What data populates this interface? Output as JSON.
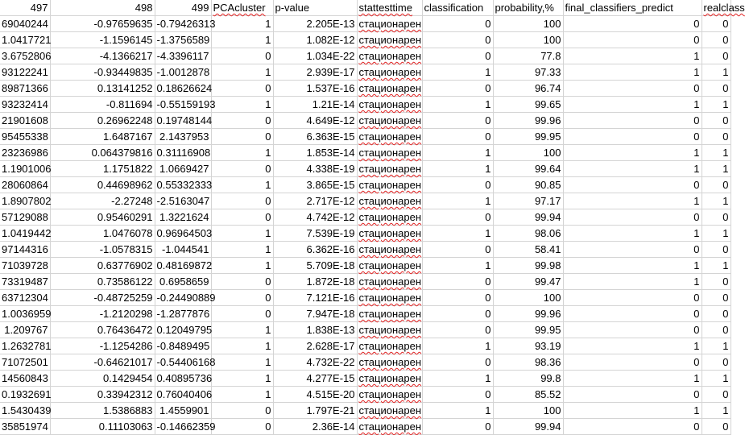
{
  "columns": [
    "497",
    "498",
    "499",
    "PCAcluster",
    "p-value",
    "stattesttime",
    "classification",
    "probability,%",
    "final_classifiers_predict",
    "realclass"
  ],
  "rows": [
    [
      "69040244",
      "-0.97659635",
      "-0.79426313",
      "1",
      "2.205E-13",
      "стационарен",
      "0",
      "100",
      "0",
      "0"
    ],
    [
      "1.0417721",
      "-1.1596145",
      "-1.3756589",
      "1",
      "1.082E-12",
      "стационарен",
      "0",
      "100",
      "0",
      "0"
    ],
    [
      "3.6752806",
      "-4.1366217",
      "-4.3396117",
      "0",
      "1.034E-22",
      "стационарен",
      "0",
      "77.8",
      "1",
      "0"
    ],
    [
      "93122241",
      "-0.93449835",
      "-1.0012878",
      "1",
      "2.939E-17",
      "стационарен",
      "1",
      "97.33",
      "1",
      "1"
    ],
    [
      "89871366",
      "0.13141252",
      "0.18626624",
      "0",
      "1.537E-16",
      "стационарен",
      "0",
      "96.74",
      "0",
      "0"
    ],
    [
      "93232414",
      "-0.811694",
      "-0.55159193",
      "1",
      "1.21E-14",
      "стационарен",
      "1",
      "99.65",
      "1",
      "1"
    ],
    [
      "21901608",
      "0.26962248",
      "0.19748144",
      "0",
      "4.649E-12",
      "стационарен",
      "0",
      "99.96",
      "0",
      "0"
    ],
    [
      "95455338",
      "1.6487167",
      "2.1437953",
      "0",
      "6.363E-15",
      "стационарен",
      "0",
      "99.95",
      "0",
      "0"
    ],
    [
      "23236986",
      "0.064379816",
      "0.31116908",
      "1",
      "1.853E-14",
      "стационарен",
      "1",
      "100",
      "1",
      "1"
    ],
    [
      "1.1901006",
      "1.1751822",
      "1.0669427",
      "0",
      "4.338E-19",
      "стационарен",
      "1",
      "99.64",
      "1",
      "1"
    ],
    [
      "28060864",
      "0.44698962",
      "0.55332333",
      "1",
      "3.865E-15",
      "стационарен",
      "0",
      "90.85",
      "0",
      "0"
    ],
    [
      "1.8907802",
      "-2.27248",
      "-2.5163047",
      "0",
      "2.717E-12",
      "стационарен",
      "1",
      "97.17",
      "1",
      "1"
    ],
    [
      "57129088",
      "0.95460291",
      "1.3221624",
      "0",
      "4.742E-12",
      "стационарен",
      "0",
      "99.94",
      "0",
      "0"
    ],
    [
      "1.0419442",
      "1.0476078",
      "0.96964503",
      "1",
      "7.539E-19",
      "стационарен",
      "1",
      "98.06",
      "1",
      "1"
    ],
    [
      "97144316",
      "-1.0578315",
      "-1.044541",
      "1",
      "6.362E-16",
      "стационарен",
      "0",
      "58.41",
      "0",
      "0"
    ],
    [
      "71039728",
      "0.63776902",
      "0.48169872",
      "1",
      "5.709E-18",
      "стационарен",
      "1",
      "99.98",
      "1",
      "1"
    ],
    [
      "73319487",
      "0.73586122",
      "0.6958659",
      "0",
      "1.872E-18",
      "стационарен",
      "0",
      "99.47",
      "1",
      "0"
    ],
    [
      "63712304",
      "-0.48725259",
      "-0.24490889",
      "0",
      "7.121E-16",
      "стационарен",
      "0",
      "100",
      "0",
      "0"
    ],
    [
      "1.0036959",
      "-1.2120298",
      "-1.2877876",
      "0",
      "7.947E-18",
      "стационарен",
      "0",
      "99.96",
      "0",
      "0"
    ],
    [
      "1.209767",
      "0.76436472",
      "0.12049795",
      "1",
      "1.838E-13",
      "стационарен",
      "0",
      "99.95",
      "0",
      "0"
    ],
    [
      "1.2632781",
      "-1.1254286",
      "-0.8489495",
      "1",
      "2.628E-17",
      "стационарен",
      "1",
      "93.19",
      "1",
      "1"
    ],
    [
      "71072501",
      "-0.64621017",
      "-0.54406168",
      "1",
      "4.732E-22",
      "стационарен",
      "0",
      "98.36",
      "0",
      "0"
    ],
    [
      "14560843",
      "0.1429454",
      "0.40895736",
      "1",
      "4.277E-15",
      "стационарен",
      "1",
      "99.8",
      "1",
      "1"
    ],
    [
      "0.1932691",
      "0.33942312",
      "0.76040406",
      "1",
      "4.515E-20",
      "стационарен",
      "0",
      "85.52",
      "0",
      "0"
    ],
    [
      "1.5430439",
      "1.5386883",
      "1.4559901",
      "0",
      "1.797E-21",
      "стационарен",
      "1",
      "100",
      "1",
      "1"
    ],
    [
      "35851974",
      "0.11103063",
      "-0.14662359",
      "0",
      "2.36E-14",
      "стационарен",
      "0",
      "99.94",
      "0",
      "0"
    ]
  ]
}
